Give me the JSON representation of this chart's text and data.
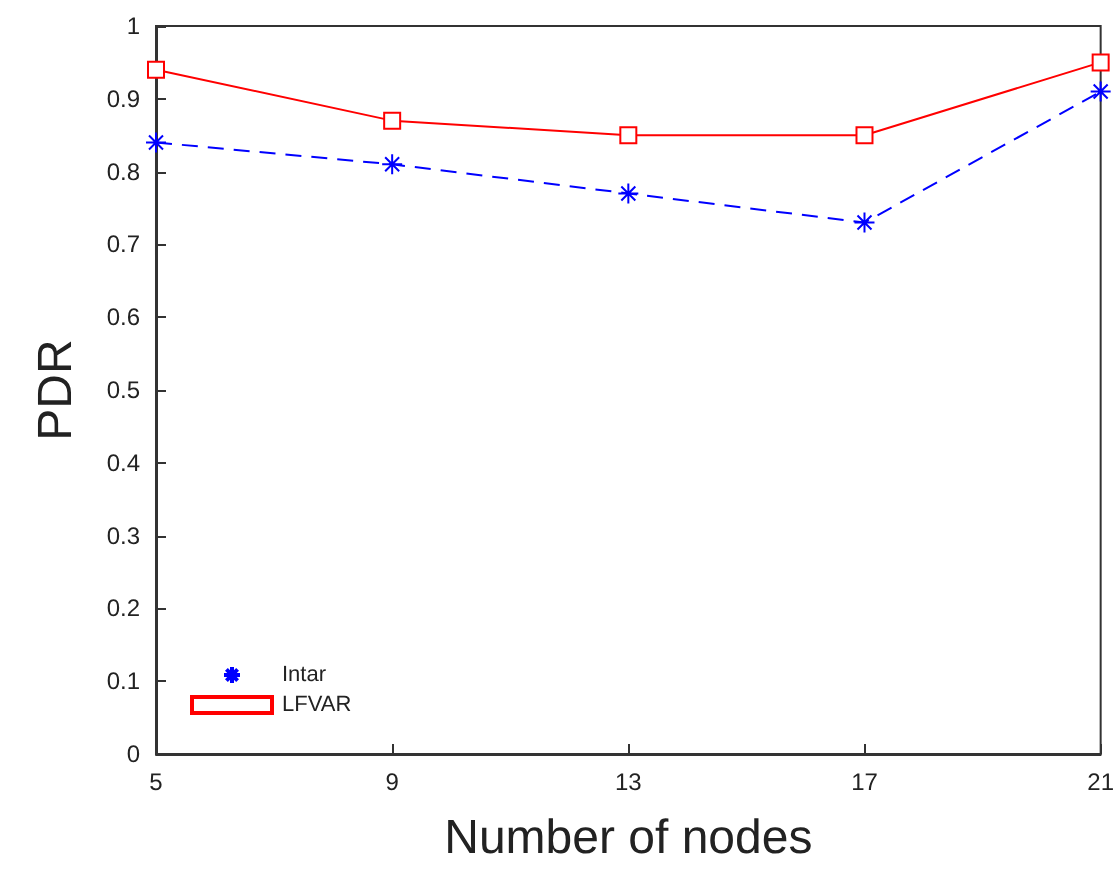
{
  "chart_data": {
    "type": "line",
    "xlabel": "Number of nodes",
    "ylabel": "PDR",
    "x": [
      5,
      9,
      13,
      17,
      21
    ],
    "series": [
      {
        "name": "Intar",
        "color": "#0000ff",
        "values": [
          0.84,
          0.81,
          0.77,
          0.73,
          0.91
        ],
        "marker": "cross",
        "line_style": "dashed"
      },
      {
        "name": "LFVAR",
        "color": "#ff0000",
        "values": [
          0.94,
          0.87,
          0.85,
          0.85,
          0.95
        ],
        "marker": "square",
        "line_style": "solid"
      }
    ],
    "xlim": [
      5,
      21
    ],
    "xticks": [
      5,
      9,
      13,
      17,
      21
    ],
    "ylim": [
      0,
      1
    ],
    "yticks": [
      0,
      0.1,
      0.2,
      0.3,
      0.4,
      0.5,
      0.6,
      0.7,
      0.8,
      0.9,
      1
    ],
    "grid": false,
    "legend": "bottom left"
  }
}
